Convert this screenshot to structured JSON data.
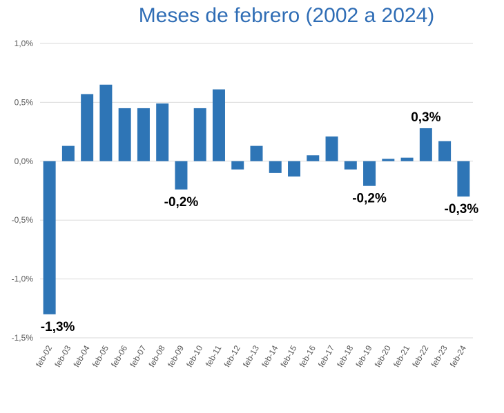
{
  "chart_data": {
    "type": "bar",
    "title": "Meses de febrero (2002 a 2024)",
    "xlabel": "",
    "ylabel": "",
    "ylim": [
      -1.5,
      1.0
    ],
    "yticks": [
      1.0,
      0.5,
      0.0,
      -0.5,
      -1.0,
      -1.5
    ],
    "ytick_labels": [
      "1,0%",
      "0,5%",
      "0,0%",
      "-0,5%",
      "-1,0%",
      "-1,5%"
    ],
    "grid": true,
    "bar_color": "#2e75b6",
    "categories": [
      "feb-02",
      "feb-03",
      "feb-04",
      "feb-05",
      "feb-06",
      "feb-07",
      "feb-08",
      "feb-09",
      "feb-10",
      "feb-11",
      "feb-12",
      "feb-13",
      "feb-14",
      "feb-15",
      "feb-16",
      "feb-17",
      "feb-18",
      "feb-19",
      "feb-20",
      "feb-21",
      "feb-22",
      "feb-23",
      "feb-24"
    ],
    "values": [
      -1.3,
      0.13,
      0.57,
      0.65,
      0.45,
      0.45,
      0.49,
      -0.24,
      0.45,
      0.61,
      -0.07,
      0.13,
      -0.1,
      -0.13,
      0.05,
      0.21,
      -0.07,
      -0.21,
      0.02,
      0.03,
      0.28,
      0.17,
      -0.3
    ],
    "data_labels": [
      {
        "category": "feb-02",
        "text": "-1,3%"
      },
      {
        "category": "feb-09",
        "text": "-0,2%"
      },
      {
        "category": "feb-19",
        "text": "-0,2%"
      },
      {
        "category": "feb-22",
        "text": "0,3%"
      },
      {
        "category": "feb-24",
        "text": "-0,3%"
      }
    ]
  }
}
